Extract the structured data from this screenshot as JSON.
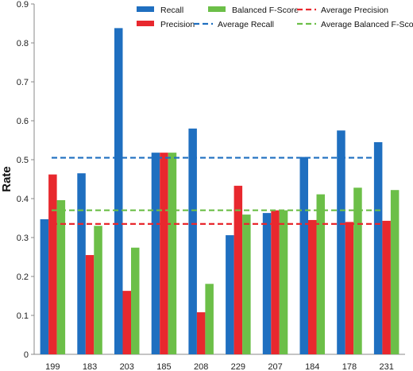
{
  "chart_data": {
    "type": "bar",
    "title": "",
    "xlabel": "",
    "ylabel": "Rate",
    "ylim": [
      0,
      0.9
    ],
    "yticks": [
      "0",
      "0.1",
      "0.2",
      "0.3",
      "0.4",
      "0.5",
      "0.6",
      "0.7",
      "0.8",
      "0.9"
    ],
    "categories": [
      "199",
      "183",
      "203",
      "185",
      "208",
      "229",
      "207",
      "184",
      "178",
      "231"
    ],
    "series": [
      {
        "name": "Recall",
        "color": "#1f6fc0",
        "values": [
          0.347,
          0.465,
          0.838,
          0.518,
          0.58,
          0.306,
          0.363,
          0.507,
          0.575,
          0.545
        ]
      },
      {
        "name": "Precision",
        "color": "#e8282e",
        "values": [
          0.462,
          0.255,
          0.163,
          0.518,
          0.108,
          0.433,
          0.37,
          0.345,
          0.34,
          0.343
        ]
      },
      {
        "name": "Balanced F-Score",
        "color": "#6cbf48",
        "values": [
          0.396,
          0.33,
          0.274,
          0.518,
          0.181,
          0.359,
          0.37,
          0.411,
          0.428,
          0.422
        ]
      }
    ],
    "reference_lines": [
      {
        "name": "Average Precision",
        "color": "#e8282e",
        "value": 0.335
      },
      {
        "name": "Average Recall",
        "color": "#1f6fc0",
        "value": 0.505
      },
      {
        "name": "Average Balanced F-Score",
        "color": "#6cbf48",
        "value": 0.37
      }
    ],
    "grid": false,
    "legend": "top-right"
  }
}
